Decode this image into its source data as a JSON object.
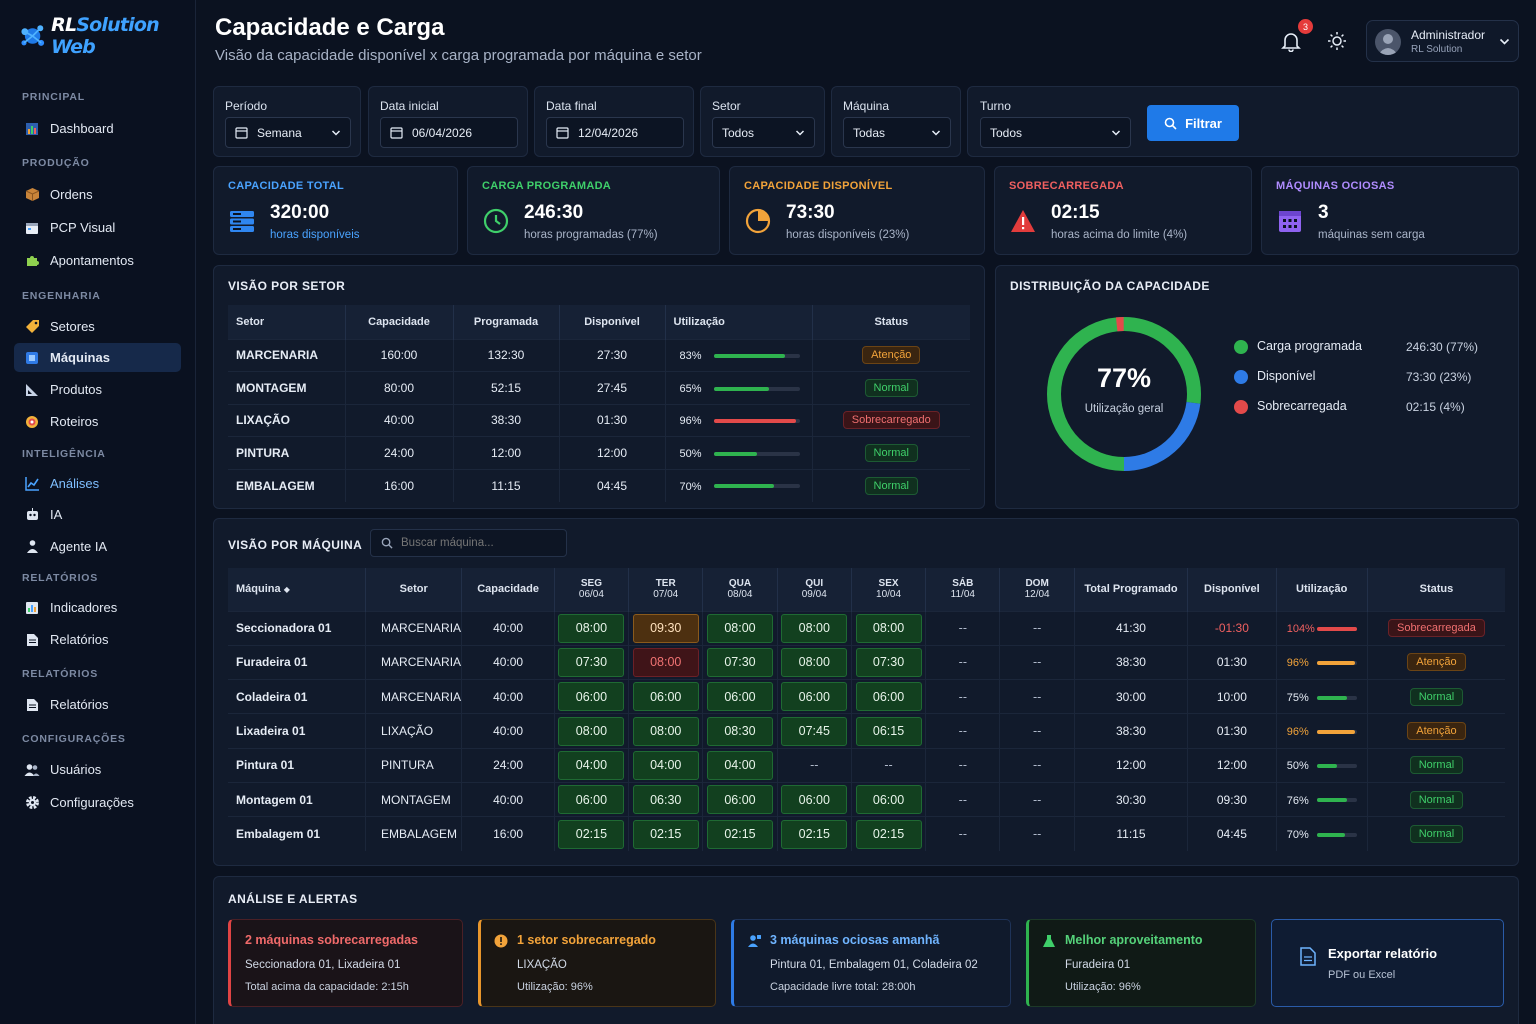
{
  "brand": {
    "rl": "RL",
    "name": "Solution Web"
  },
  "sidebar": {
    "sections": [
      "PRINCIPAL",
      "PRODUÇÃO",
      "ENGENHARIA",
      "INTELIGÊNCIA",
      "RELATÓRIOS",
      "RELATÓRIOS",
      "CONFIGURAÇÕES"
    ],
    "items": [
      {
        "label": "Dashboard"
      },
      {
        "label": "Ordens"
      },
      {
        "label": "PCP Visual"
      },
      {
        "label": "Apontamentos"
      },
      {
        "label": "Setores"
      },
      {
        "label": "Máquinas"
      },
      {
        "label": "Produtos"
      },
      {
        "label": "Roteiros"
      },
      {
        "label": "Análises"
      },
      {
        "label": "IA"
      },
      {
        "label": "Agente IA"
      },
      {
        "label": "Indicadores"
      },
      {
        "label": "Relatórios"
      },
      {
        "label": "Relatórios"
      },
      {
        "label": "Usuários"
      },
      {
        "label": "Configurações"
      }
    ]
  },
  "header": {
    "title": "Capacidade e Carga",
    "subtitle": "Visão da capacidade disponível x carga programada por máquina e setor",
    "notifications": "3",
    "user_name": "Administrador",
    "user_org": "RL Solution"
  },
  "filters": {
    "periodo_label": "Período",
    "periodo_value": "Semana",
    "data_inicial_label": "Data inicial",
    "data_inicial_value": "06/04/2026",
    "data_final_label": "Data final",
    "data_final_value": "12/04/2026",
    "setor_label": "Setor",
    "setor_value": "Todos",
    "maquina_label": "Máquina",
    "maquina_value": "Todas",
    "turno_label": "Turno",
    "turno_value": "Todos",
    "button": "Filtrar"
  },
  "kpis": [
    {
      "title": "CAPACIDADE TOTAL",
      "value": "320:00",
      "sub": "horas disponíveis",
      "color": "#4aa3ff"
    },
    {
      "title": "CARGA PROGRAMADA",
      "value": "246:30",
      "sub": "horas programadas (77%)",
      "color": "#3fcf6a"
    },
    {
      "title": "CAPACIDADE DISPONÍVEL",
      "value": "73:30",
      "sub": "horas disponíveis (23%)",
      "color": "#f2a33a"
    },
    {
      "title": "SOBRECARREGADA",
      "value": "02:15",
      "sub": "horas acima do limite (4%)",
      "color": "#f06060"
    },
    {
      "title": "MÁQUINAS OCIOSAS",
      "value": "3",
      "sub": "máquinas sem carga",
      "color": "#b08cff"
    }
  ],
  "setor": {
    "title": "VISÃO POR SETOR",
    "headers": [
      "Setor",
      "Capacidade",
      "Programada",
      "Disponível",
      "Utilização",
      "Status"
    ],
    "rows": [
      {
        "setor": "MARCENARIA",
        "cap": "160:00",
        "prog": "132:30",
        "disp": "27:30",
        "util": "83%",
        "status": "Atenção"
      },
      {
        "setor": "MONTAGEM",
        "cap": "80:00",
        "prog": "52:15",
        "disp": "27:45",
        "util": "65%",
        "status": "Normal"
      },
      {
        "setor": "LIXAÇÃO",
        "cap": "40:00",
        "prog": "38:30",
        "disp": "01:30",
        "util": "96%",
        "status": "Sobrecarregado"
      },
      {
        "setor": "PINTURA",
        "cap": "24:00",
        "prog": "12:00",
        "disp": "12:00",
        "util": "50%",
        "status": "Normal"
      },
      {
        "setor": "EMBALAGEM",
        "cap": "16:00",
        "prog": "11:15",
        "disp": "04:45",
        "util": "70%",
        "status": "Normal"
      }
    ]
  },
  "distribuicao": {
    "title": "DISTRIBUIÇÃO DA CAPACIDADE",
    "center_value": "77%",
    "center_label": "Utilização geral",
    "legend": [
      {
        "label": "Carga programada",
        "value": "246:30 (77%)",
        "color": "#2fb34f"
      },
      {
        "label": "Disponível",
        "value": "73:30 (23%)",
        "color": "#2e7be6"
      },
      {
        "label": "Sobrecarregada",
        "value": "02:15 (4%)",
        "color": "#e34a4a"
      }
    ]
  },
  "maquina": {
    "title": "VISÃO POR MÁQUINA",
    "search_placeholder": "Buscar máquina...",
    "headers": {
      "maquina": "Máquina",
      "setor": "Setor",
      "capacidade": "Capacidade",
      "days": [
        {
          "d": "SEG",
          "dt": "06/04"
        },
        {
          "d": "TER",
          "dt": "07/04"
        },
        {
          "d": "QUA",
          "dt": "08/04"
        },
        {
          "d": "QUI",
          "dt": "09/04"
        },
        {
          "d": "SEX",
          "dt": "10/04"
        },
        {
          "d": "SÁB",
          "dt": "11/04"
        },
        {
          "d": "DOM",
          "dt": "12/04"
        }
      ],
      "total": "Total Programado",
      "disponivel": "Disponível",
      "utilizacao": "Utilização",
      "status": "Status"
    },
    "rows": [
      {
        "nome": "Seccionadora 01",
        "setor": "MARCENARIA",
        "cap": "40:00",
        "days": [
          "08:00",
          "09:30",
          "08:00",
          "08:00",
          "08:00",
          "--",
          "--"
        ],
        "total": "41:30",
        "disp": "-01:30",
        "util": "104%",
        "status": "Sobrecarregada"
      },
      {
        "nome": "Furadeira 01",
        "setor": "MARCENARIA",
        "cap": "40:00",
        "days": [
          "07:30",
          "08:00",
          "07:30",
          "08:00",
          "07:30",
          "--",
          "--"
        ],
        "total": "38:30",
        "disp": "01:30",
        "util": "96%",
        "status": "Atenção"
      },
      {
        "nome": "Coladeira 01",
        "setor": "MARCENARIA",
        "cap": "40:00",
        "days": [
          "06:00",
          "06:00",
          "06:00",
          "06:00",
          "06:00",
          "--",
          "--"
        ],
        "total": "30:00",
        "disp": "10:00",
        "util": "75%",
        "status": "Normal"
      },
      {
        "nome": "Lixadeira 01",
        "setor": "LIXAÇÃO",
        "cap": "40:00",
        "days": [
          "08:00",
          "08:00",
          "08:30",
          "07:45",
          "06:15",
          "--",
          "--"
        ],
        "total": "38:30",
        "disp": "01:30",
        "util": "96%",
        "status": "Atenção"
      },
      {
        "nome": "Pintura 01",
        "setor": "PINTURA",
        "cap": "24:00",
        "days": [
          "04:00",
          "04:00",
          "04:00",
          "--",
          "--",
          "--",
          "--"
        ],
        "total": "12:00",
        "disp": "12:00",
        "util": "50%",
        "status": "Normal"
      },
      {
        "nome": "Montagem 01",
        "setor": "MONTAGEM",
        "cap": "40:00",
        "days": [
          "06:00",
          "06:30",
          "06:00",
          "06:00",
          "06:00",
          "--",
          "--"
        ],
        "total": "30:30",
        "disp": "09:30",
        "util": "76%",
        "status": "Normal"
      },
      {
        "nome": "Embalagem 01",
        "setor": "EMBALAGEM",
        "cap": "16:00",
        "days": [
          "02:15",
          "02:15",
          "02:15",
          "02:15",
          "02:15",
          "--",
          "--"
        ],
        "total": "11:15",
        "disp": "04:45",
        "util": "70%",
        "status": "Normal"
      }
    ]
  },
  "alertas": {
    "title": "ANÁLISE E ALERTAS",
    "cards": [
      {
        "title": "2 máquinas sobrecarregadas",
        "l1": "Seccionadora 01, Lixadeira 01",
        "l2": "Total acima da capacidade: 2:15h"
      },
      {
        "title": "1 setor sobrecarregado",
        "l1": "LIXAÇÃO",
        "l2": "Utilização: 96%"
      },
      {
        "title": "3 máquinas ociosas amanhã",
        "l1": "Pintura 01, Embalagem 01, Coladeira 02",
        "l2": "Capacidade livre total: 28:00h"
      },
      {
        "title": "Melhor aproveitamento",
        "l1": "Furadeira 01",
        "l2": "Utilização: 96%"
      }
    ],
    "export_title": "Exportar relatório",
    "export_sub": "PDF ou Excel"
  }
}
